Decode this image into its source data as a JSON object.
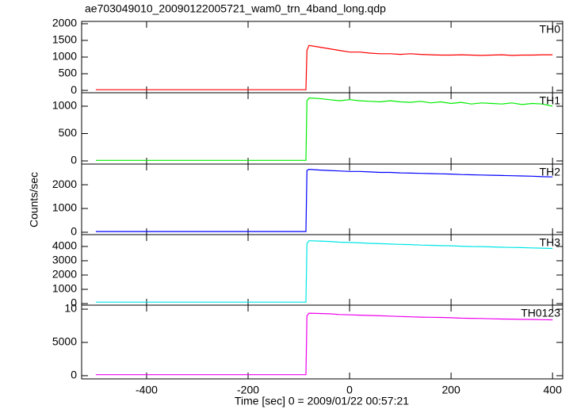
{
  "chart_data": [
    {
      "type": "line",
      "title": "ae703049010_20090122005721_wam0_trn_4band_long.qdp",
      "name": "TH0",
      "color": "#ff0000",
      "x": [
        -500,
        -400,
        -300,
        -200,
        -100,
        -86,
        -84,
        -80,
        -60,
        -40,
        -20,
        0,
        20,
        40,
        60,
        80,
        100,
        120,
        140,
        160,
        180,
        200,
        220,
        240,
        260,
        280,
        300,
        320,
        340,
        360,
        380,
        400
      ],
      "values": [
        20,
        20,
        20,
        20,
        20,
        20,
        1200,
        1350,
        1300,
        1250,
        1200,
        1150,
        1150,
        1120,
        1100,
        1100,
        1080,
        1100,
        1080,
        1070,
        1060,
        1060,
        1070,
        1060,
        1050,
        1060,
        1070,
        1050,
        1060,
        1060,
        1070,
        1070
      ],
      "xlim": [
        -528,
        420
      ],
      "ylim": [
        -70,
        2070
      ],
      "yticks": [
        0,
        500,
        1000,
        1500,
        2000
      ]
    },
    {
      "type": "line",
      "name": "TH1",
      "color": "#00ee00",
      "x": [
        -500,
        -400,
        -300,
        -200,
        -100,
        -86,
        -84,
        -80,
        -60,
        -40,
        -20,
        0,
        20,
        40,
        60,
        80,
        100,
        120,
        140,
        160,
        180,
        200,
        220,
        240,
        260,
        280,
        300,
        320,
        340,
        360,
        380,
        400
      ],
      "values": [
        10,
        10,
        10,
        10,
        10,
        10,
        1100,
        1150,
        1140,
        1120,
        1100,
        1120,
        1100,
        1090,
        1080,
        1100,
        1080,
        1070,
        1090,
        1060,
        1080,
        1050,
        1070,
        1040,
        1060,
        1050,
        1040,
        1060,
        1030,
        1050,
        1040,
        1000
      ],
      "xlim": [
        -528,
        420
      ],
      "ylim": [
        -58,
        1246
      ],
      "yticks": [
        0,
        500,
        1000
      ]
    },
    {
      "type": "line",
      "name": "TH2",
      "color": "#0000ff",
      "ylabel": "Counts/sec",
      "x": [
        -500,
        -400,
        -300,
        -200,
        -100,
        -86,
        -84,
        -80,
        -60,
        -40,
        -20,
        0,
        20,
        40,
        60,
        80,
        100,
        120,
        140,
        160,
        180,
        200,
        220,
        240,
        260,
        280,
        300,
        320,
        340,
        360,
        380,
        400
      ],
      "values": [
        30,
        30,
        30,
        30,
        30,
        30,
        2600,
        2650,
        2620,
        2600,
        2580,
        2560,
        2560,
        2540,
        2520,
        2520,
        2500,
        2490,
        2480,
        2470,
        2460,
        2450,
        2430,
        2420,
        2410,
        2400,
        2390,
        2380,
        2370,
        2360,
        2340,
        2330
      ],
      "xlim": [
        -528,
        420
      ],
      "ylim": [
        -100,
        2870
      ],
      "yticks": [
        0,
        1000,
        2000
      ]
    },
    {
      "type": "line",
      "name": "TH3",
      "color": "#00e5e5",
      "x": [
        -500,
        -400,
        -300,
        -200,
        -100,
        -86,
        -84,
        -80,
        -60,
        -40,
        -20,
        0,
        20,
        40,
        60,
        80,
        100,
        120,
        140,
        160,
        180,
        200,
        220,
        240,
        260,
        280,
        300,
        320,
        340,
        360,
        380,
        400
      ],
      "values": [
        100,
        100,
        100,
        100,
        100,
        100,
        4200,
        4400,
        4380,
        4350,
        4300,
        4280,
        4250,
        4220,
        4200,
        4170,
        4150,
        4130,
        4100,
        4080,
        4060,
        4050,
        4020,
        4000,
        3990,
        3970,
        3950,
        3930,
        3920,
        3900,
        3880,
        3860
      ],
      "xlim": [
        -528,
        420
      ],
      "ylim": [
        -110,
        4830
      ],
      "yticks": [
        0,
        1000,
        2000,
        3000,
        4000
      ]
    },
    {
      "type": "line",
      "name": "TH0123",
      "color": "#ee00ee",
      "xlabel": "Time [sec] 0 = 2009/01/22 00:57:21",
      "x": [
        -500,
        -400,
        -300,
        -200,
        -100,
        -86,
        -84,
        -80,
        -60,
        -40,
        -20,
        0,
        20,
        40,
        60,
        80,
        100,
        120,
        140,
        160,
        180,
        200,
        220,
        240,
        260,
        280,
        300,
        320,
        340,
        360,
        380,
        400
      ],
      "values": [
        150,
        150,
        150,
        150,
        150,
        150,
        9000,
        9400,
        9350,
        9300,
        9200,
        9150,
        9100,
        9050,
        9000,
        8950,
        8900,
        8850,
        8800,
        8780,
        8750,
        8700,
        8650,
        8620,
        8600,
        8550,
        8520,
        8500,
        8470,
        8450,
        8420,
        8400
      ],
      "xlim": [
        -528,
        420
      ],
      "ylim": [
        -480,
        10600
      ],
      "yticks": [
        0,
        5000,
        {
          "value": 10000,
          "label": "10"
        }
      ],
      "xticks": [
        -400,
        -200,
        0,
        200,
        400
      ]
    }
  ]
}
